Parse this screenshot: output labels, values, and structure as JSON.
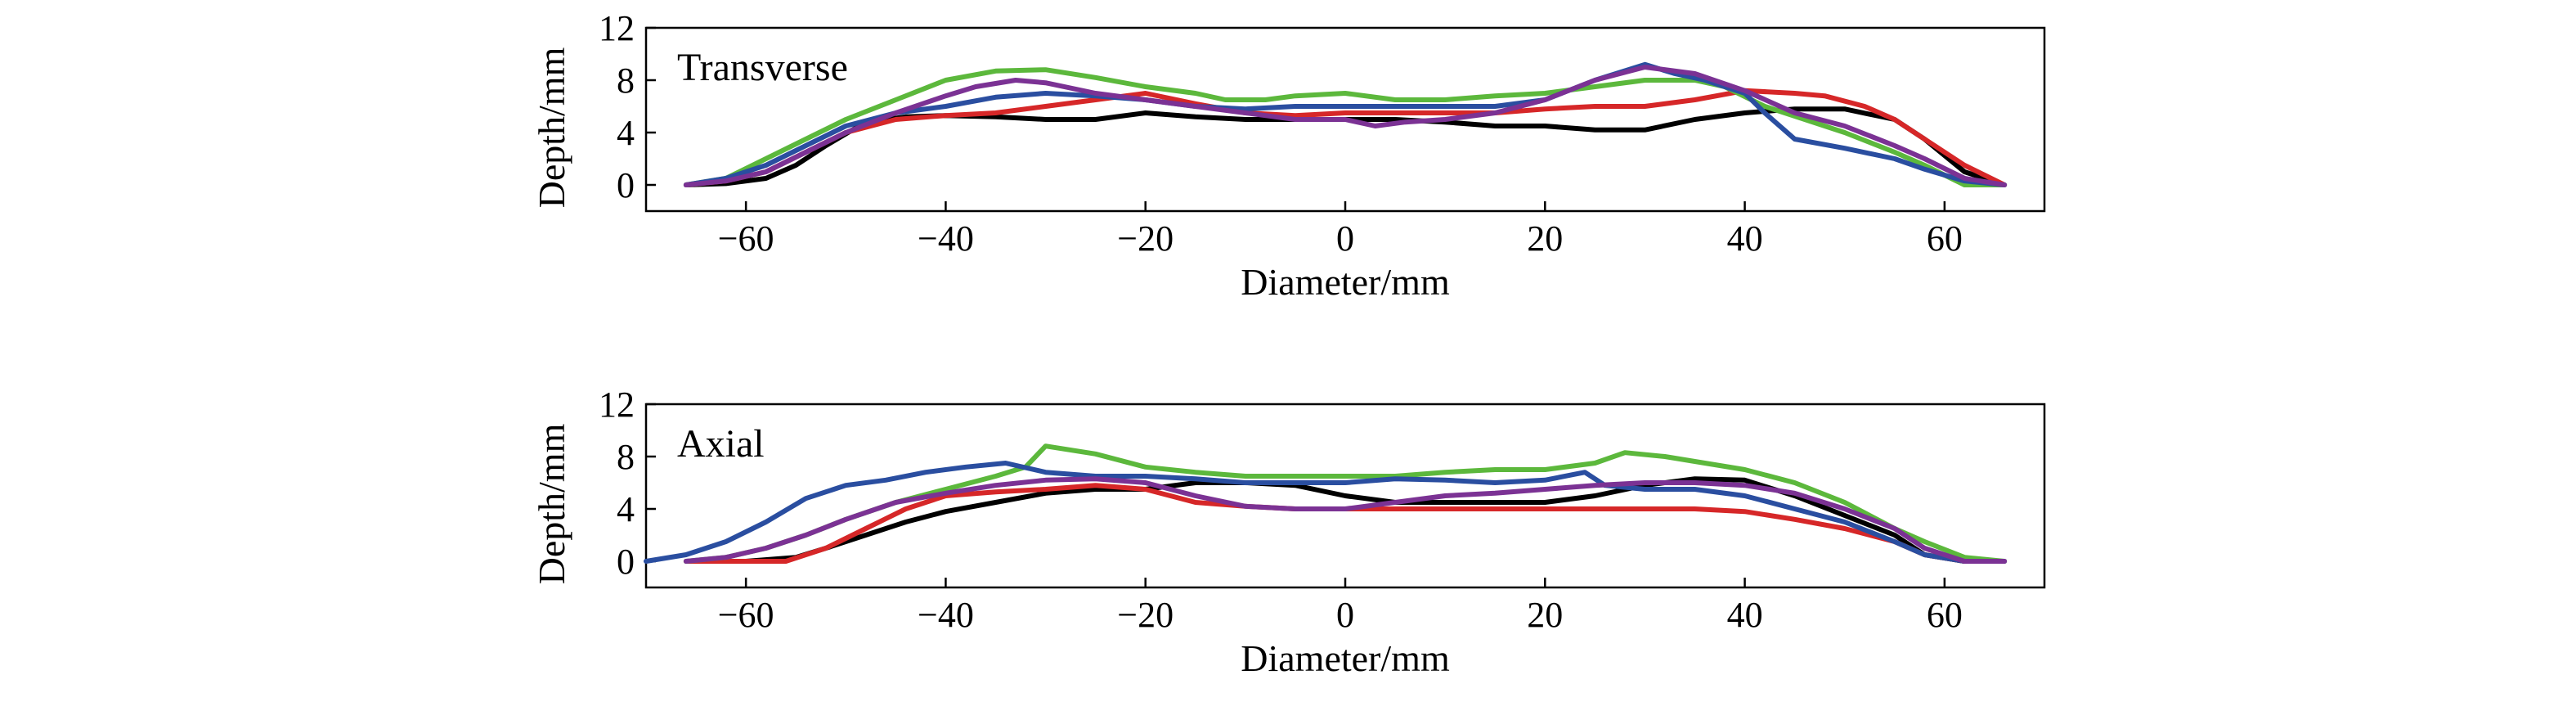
{
  "chart_data": [
    {
      "type": "line",
      "panel_label": "Transverse",
      "xlabel": "Diameter/mm",
      "ylabel": "Depth/mm",
      "xlim": [
        -70,
        70
      ],
      "ylim": [
        -2,
        12
      ],
      "xticks": [
        -60,
        -40,
        -20,
        0,
        20,
        40,
        60
      ],
      "yticks": [
        0,
        4,
        8,
        12
      ],
      "grid": false,
      "series": [
        {
          "color": "#000000",
          "x": [
            -66,
            -62,
            -58,
            -55,
            -52,
            -48,
            -44,
            -40,
            -35,
            -30,
            -25,
            -20,
            -15,
            -10,
            -5,
            0,
            5,
            10,
            15,
            20,
            25,
            30,
            35,
            40,
            45,
            50,
            55,
            58,
            62,
            66
          ],
          "y": [
            0,
            0.1,
            0.5,
            1.5,
            3,
            4.8,
            5.2,
            5.3,
            5.2,
            5,
            5,
            5.5,
            5.2,
            5,
            5,
            5,
            5,
            4.8,
            4.5,
            4.5,
            4.2,
            4.2,
            5,
            5.5,
            5.8,
            5.8,
            5,
            3.5,
            1,
            0
          ]
        },
        {
          "color": "#d62728",
          "x": [
            -66,
            -62,
            -58,
            -54,
            -50,
            -45,
            -40,
            -35,
            -30,
            -25,
            -20,
            -15,
            -10,
            -5,
            0,
            5,
            10,
            15,
            20,
            25,
            30,
            35,
            40,
            45,
            48,
            52,
            55,
            58,
            62,
            66
          ],
          "y": [
            0,
            0.3,
            1,
            2.5,
            4,
            5,
            5.3,
            5.5,
            6,
            6.5,
            7,
            6.2,
            5.5,
            5.3,
            5.5,
            5.5,
            5.5,
            5.5,
            5.8,
            6,
            6,
            6.5,
            7.2,
            7,
            6.8,
            6,
            5,
            3.5,
            1.5,
            0
          ]
        },
        {
          "color": "#5cb83c",
          "x": [
            -66,
            -62,
            -58,
            -54,
            -50,
            -45,
            -40,
            -35,
            -30,
            -25,
            -20,
            -15,
            -12,
            -8,
            -5,
            0,
            5,
            10,
            15,
            20,
            25,
            30,
            35,
            38,
            42,
            46,
            50,
            55,
            58,
            62,
            66
          ],
          "y": [
            0,
            0.5,
            2,
            3.5,
            5,
            6.5,
            8,
            8.7,
            8.8,
            8.2,
            7.5,
            7,
            6.5,
            6.5,
            6.8,
            7,
            6.5,
            6.5,
            6.8,
            7,
            7.5,
            8,
            8,
            7.5,
            6,
            5,
            4,
            2.5,
            1.5,
            0,
            0
          ]
        },
        {
          "color": "#2a4ea0",
          "x": [
            -66,
            -62,
            -58,
            -54,
            -50,
            -45,
            -40,
            -35,
            -30,
            -25,
            -20,
            -15,
            -10,
            -5,
            0,
            5,
            10,
            15,
            20,
            25,
            30,
            33,
            36,
            40,
            42,
            45,
            50,
            55,
            58,
            62,
            66
          ],
          "y": [
            0,
            0.5,
            1.5,
            3,
            4.5,
            5.5,
            6,
            6.7,
            7,
            6.8,
            6.5,
            6,
            5.8,
            6,
            6,
            6,
            6,
            6,
            6.5,
            8,
            9.2,
            8.5,
            8,
            7,
            5.5,
            3.5,
            2.8,
            2,
            1.2,
            0.3,
            0
          ]
        },
        {
          "color": "#7b3294",
          "x": [
            -66,
            -62,
            -58,
            -54,
            -50,
            -45,
            -40,
            -37,
            -33,
            -30,
            -25,
            -20,
            -15,
            -10,
            -5,
            0,
            3,
            6,
            10,
            15,
            20,
            25,
            30,
            35,
            40,
            45,
            50,
            55,
            58,
            62,
            66
          ],
          "y": [
            0,
            0.3,
            1,
            2.5,
            4,
            5.5,
            6.8,
            7.5,
            8,
            7.8,
            7,
            6.5,
            6,
            5.5,
            5,
            5,
            4.5,
            4.8,
            5,
            5.5,
            6.5,
            8,
            9,
            8.5,
            7.2,
            5.5,
            4.5,
            3,
            2,
            0.5,
            0
          ]
        }
      ]
    },
    {
      "type": "line",
      "panel_label": "Axial",
      "xlabel": "Diameter/mm",
      "ylabel": "Depth/mm",
      "xlim": [
        -70,
        70
      ],
      "ylim": [
        -2,
        12
      ],
      "xticks": [
        -60,
        -40,
        -20,
        0,
        20,
        40,
        60
      ],
      "yticks": [
        0,
        4,
        8,
        12
      ],
      "grid": false,
      "series": [
        {
          "color": "#000000",
          "x": [
            -66,
            -60,
            -55,
            -52,
            -48,
            -44,
            -40,
            -35,
            -30,
            -25,
            -20,
            -15,
            -10,
            -5,
            0,
            5,
            10,
            15,
            20,
            25,
            30,
            35,
            40,
            45,
            50,
            55,
            58,
            62,
            66
          ],
          "y": [
            0,
            0,
            0.3,
            1,
            2,
            3,
            3.8,
            4.5,
            5.2,
            5.5,
            5.5,
            6,
            6,
            5.8,
            5,
            4.5,
            4.5,
            4.5,
            4.5,
            5,
            5.8,
            6.3,
            6.2,
            5,
            3.5,
            2,
            0.5,
            0,
            0
          ]
        },
        {
          "color": "#d62728",
          "x": [
            -66,
            -60,
            -56,
            -52,
            -48,
            -44,
            -40,
            -35,
            -30,
            -25,
            -20,
            -15,
            -10,
            -5,
            0,
            5,
            10,
            15,
            20,
            25,
            30,
            35,
            40,
            45,
            50,
            55,
            58,
            62,
            66
          ],
          "y": [
            0,
            0,
            0,
            1,
            2.5,
            4,
            5,
            5.3,
            5.5,
            5.8,
            5.5,
            4.5,
            4.2,
            4,
            4,
            4,
            4,
            4,
            4,
            4,
            4,
            4,
            3.8,
            3.2,
            2.5,
            1.5,
            0.5,
            0,
            0
          ]
        },
        {
          "color": "#5cb83c",
          "x": [
            -66,
            -62,
            -58,
            -54,
            -50,
            -45,
            -40,
            -35,
            -32,
            -30,
            -25,
            -20,
            -15,
            -10,
            -5,
            0,
            5,
            10,
            15,
            20,
            25,
            28,
            32,
            36,
            40,
            45,
            50,
            55,
            58,
            62,
            66
          ],
          "y": [
            0,
            0.3,
            1,
            2,
            3.2,
            4.5,
            5.5,
            6.5,
            7.2,
            8.8,
            8.2,
            7.2,
            6.8,
            6.5,
            6.5,
            6.5,
            6.5,
            6.8,
            7,
            7,
            7.5,
            8.3,
            8,
            7.5,
            7,
            6,
            4.5,
            2.5,
            1.5,
            0.3,
            0
          ]
        },
        {
          "color": "#2a4ea0",
          "x": [
            -70,
            -66,
            -62,
            -58,
            -54,
            -50,
            -46,
            -42,
            -38,
            -34,
            -30,
            -25,
            -20,
            -15,
            -10,
            -5,
            0,
            5,
            10,
            15,
            20,
            24,
            26,
            30,
            35,
            40,
            45,
            50,
            55,
            58,
            62,
            66
          ],
          "y": [
            0,
            0.5,
            1.5,
            3,
            4.8,
            5.8,
            6.2,
            6.8,
            7.2,
            7.5,
            6.8,
            6.5,
            6.5,
            6.3,
            6,
            6,
            6,
            6.3,
            6.2,
            6,
            6.2,
            6.8,
            5.8,
            5.5,
            5.5,
            5,
            4,
            3,
            1.5,
            0.5,
            0,
            0
          ]
        },
        {
          "color": "#7b3294",
          "x": [
            -66,
            -62,
            -58,
            -54,
            -50,
            -45,
            -40,
            -35,
            -30,
            -25,
            -20,
            -15,
            -10,
            -5,
            0,
            5,
            10,
            15,
            20,
            25,
            30,
            35,
            40,
            45,
            50,
            55,
            58,
            62,
            66
          ],
          "y": [
            0,
            0.3,
            1,
            2,
            3.2,
            4.5,
            5.2,
            5.8,
            6.2,
            6.3,
            6,
            5,
            4.2,
            4,
            4,
            4.5,
            5,
            5.2,
            5.5,
            5.8,
            6,
            6,
            5.8,
            5.2,
            4,
            2.5,
            1,
            0,
            0
          ]
        }
      ]
    }
  ]
}
